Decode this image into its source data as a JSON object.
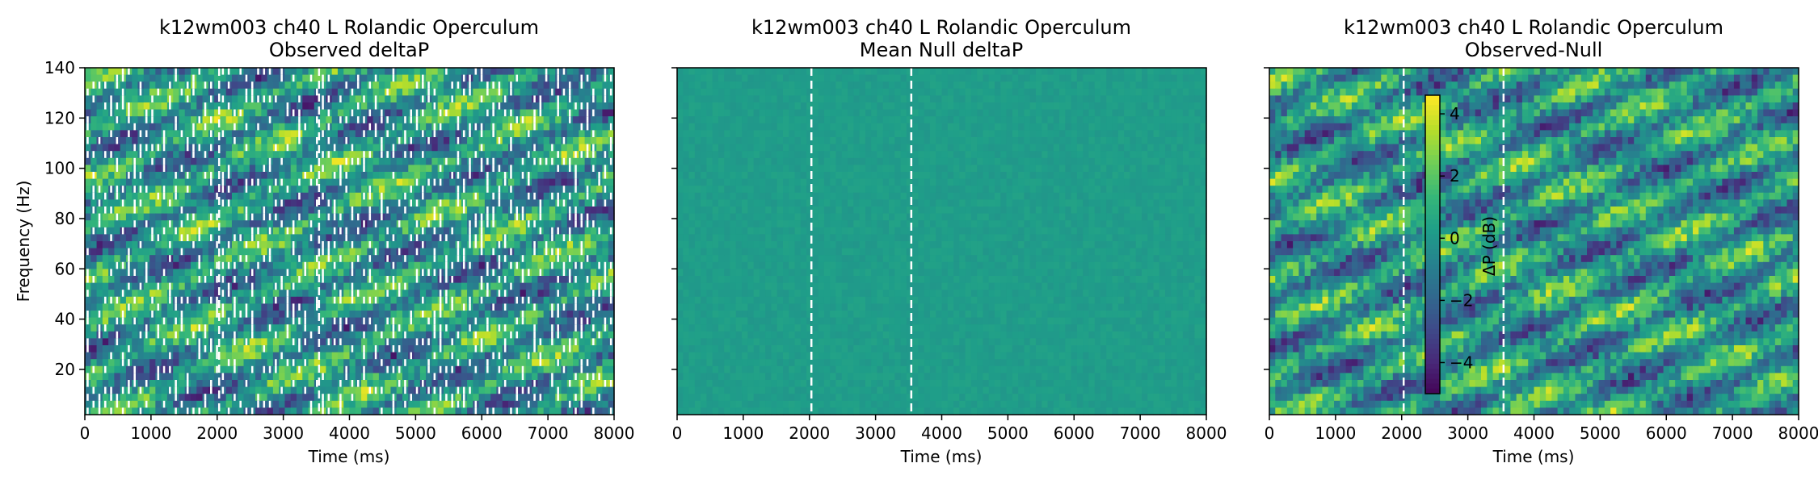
{
  "figure": {
    "panels": [
      {
        "title_line1": "k12wm003 ch40 L Rolandic Operculum",
        "title_line2": "Observed deltaP"
      },
      {
        "title_line1": "k12wm003 ch40 L Rolandic Operculum",
        "title_line2": "Mean Null deltaP"
      },
      {
        "title_line1": "k12wm003 ch40 L Rolandic Operculum",
        "title_line2": "Observed-Null"
      }
    ],
    "xlabel": "Time (ms)",
    "ylabel": "Frequency (Hz)",
    "colorbar_label": "ΔP (dB)"
  },
  "chart_data": [
    {
      "type": "heatmap",
      "title": "k12wm003 ch40 L Rolandic Operculum Observed deltaP",
      "xlabel": "Time (ms)",
      "ylabel": "Frequency (Hz)",
      "xlim": [
        0,
        8000
      ],
      "ylim": [
        2,
        140
      ],
      "x_ticks": [
        "0",
        "1000",
        "2000",
        "3000",
        "4000",
        "5000",
        "6000",
        "7000",
        "8000"
      ],
      "y_ticks": [
        "20",
        "40",
        "60",
        "80",
        "100",
        "120",
        "140"
      ],
      "vlines_ms": [
        2030,
        3540
      ],
      "colormap": "viridis",
      "value_range_db": [
        -5,
        4.6
      ],
      "masked_cells": "white (non-significant / NaN, many gaps)"
    },
    {
      "type": "heatmap",
      "title": "k12wm003 ch40 L Rolandic Operculum Mean Null deltaP",
      "xlabel": "Time (ms)",
      "xlim": [
        0,
        8000
      ],
      "ylim": [
        2,
        140
      ],
      "x_ticks": [
        "0",
        "1000",
        "2000",
        "3000",
        "4000",
        "5000",
        "6000",
        "7000",
        "8000"
      ],
      "vlines_ms": [
        2030,
        3540
      ],
      "colormap": "viridis",
      "approx_uniform_value_db": 0
    },
    {
      "type": "heatmap",
      "title": "k12wm003 ch40 L Rolandic Operculum Observed-Null",
      "xlabel": "Time (ms)",
      "xlim": [
        0,
        8000
      ],
      "ylim": [
        2,
        140
      ],
      "x_ticks": [
        "0",
        "1000",
        "2000",
        "3000",
        "4000",
        "5000",
        "6000",
        "7000",
        "8000"
      ],
      "vlines_ms": [
        2030,
        3540
      ],
      "colormap": "viridis",
      "colorbar": {
        "label": "ΔP (dB)",
        "ticks": [
          "4",
          "2",
          "0",
          "−2",
          "−4"
        ],
        "range": [
          -5,
          4.6
        ]
      }
    }
  ]
}
